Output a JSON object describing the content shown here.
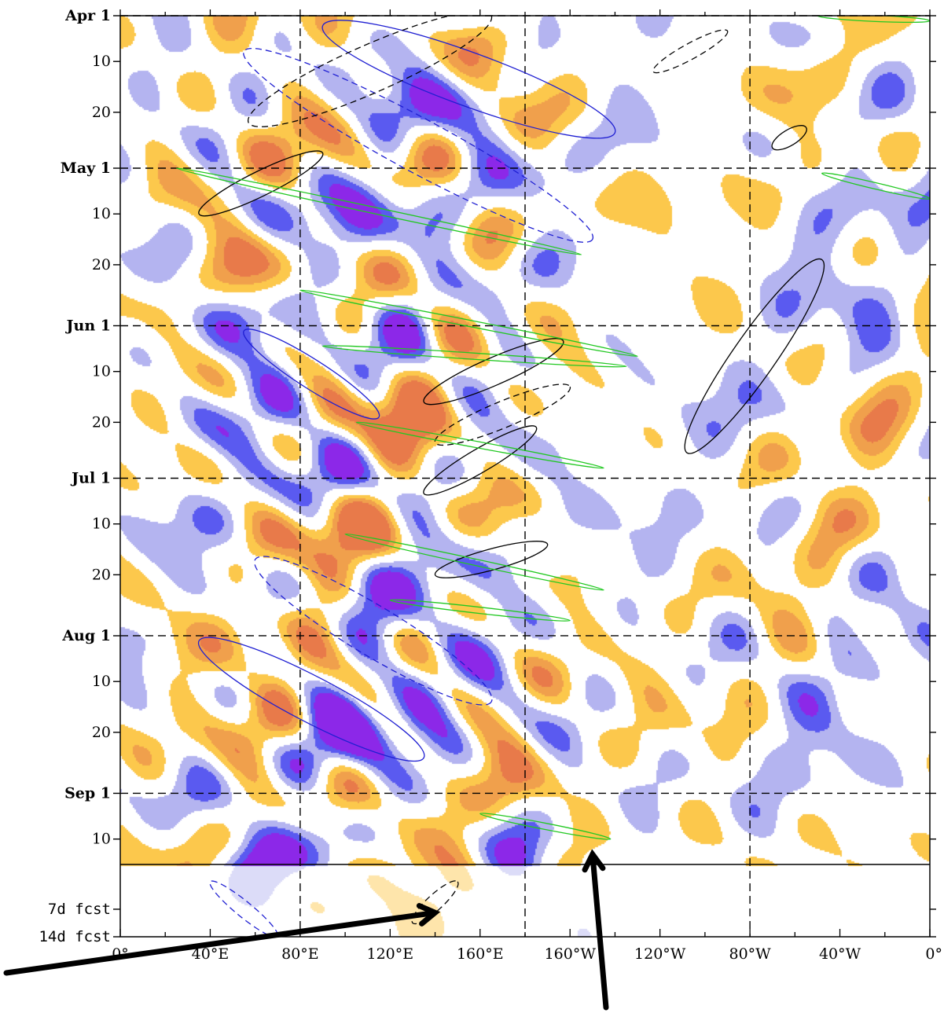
{
  "chart_data": {
    "type": "heatmap",
    "title": "",
    "xlabel": "",
    "ylabel": "",
    "x_axis": {
      "unit": "degrees longitude",
      "range": [
        0,
        360
      ],
      "tick_labels": [
        {
          "lon": 0,
          "label": "0°"
        },
        {
          "lon": 40,
          "label": "40°E"
        },
        {
          "lon": 80,
          "label": "80°E"
        },
        {
          "lon": 120,
          "label": "120°E"
        },
        {
          "lon": 160,
          "label": "160°E"
        },
        {
          "lon": 200,
          "label": "160°W"
        },
        {
          "lon": 240,
          "label": "120°W"
        },
        {
          "lon": 280,
          "label": "80°W"
        },
        {
          "lon": 320,
          "label": "40°W"
        },
        {
          "lon": 360,
          "label": "0°"
        }
      ],
      "dashed_gridlines_lon": [
        80,
        180,
        280
      ]
    },
    "y_axis": {
      "unit": "day of season starting Apr 1 (time increases downward)",
      "range_days": [
        0,
        188
      ],
      "tick_labels": [
        {
          "day": 0,
          "label": "Apr 1",
          "bold": true
        },
        {
          "day": 9,
          "label": "10"
        },
        {
          "day": 19,
          "label": "20"
        },
        {
          "day": 30,
          "label": "May 1",
          "bold": true
        },
        {
          "day": 39,
          "label": "10"
        },
        {
          "day": 49,
          "label": "20"
        },
        {
          "day": 61,
          "label": "Jun 1",
          "bold": true
        },
        {
          "day": 70,
          "label": "10"
        },
        {
          "day": 80,
          "label": "20"
        },
        {
          "day": 91,
          "label": "Jul 1",
          "bold": true
        },
        {
          "day": 100,
          "label": "10"
        },
        {
          "day": 110,
          "label": "20"
        },
        {
          "day": 122,
          "label": "Aug 1",
          "bold": true
        },
        {
          "day": 131,
          "label": "10"
        },
        {
          "day": 141,
          "label": "20"
        },
        {
          "day": 153,
          "label": "Sep 1",
          "bold": true
        },
        {
          "day": 162,
          "label": "10"
        },
        {
          "day": 180,
          "label": "7d fcst"
        },
        {
          "day": 188,
          "label": "14d fcst"
        }
      ],
      "observation_end_day": 167,
      "forecast_range_days": [
        167,
        188
      ],
      "dashed_gridlines_days": [
        0,
        30,
        61,
        91,
        122,
        153
      ]
    },
    "shading": {
      "legend": "none shown",
      "colors": {
        "strong_negative": "#8c28e8",
        "negative": "#5a5af0",
        "weak_negative": "#b4b4f0",
        "weak_positive": "#fcc84c",
        "positive": "#f0a04c",
        "strong_positive": "#e87a4a"
      }
    },
    "contours": [
      {
        "color": "#1f1fd2",
        "style": "solid",
        "lon_start": 90,
        "day_start": 2,
        "lon_end": 220,
        "day_end": 23
      },
      {
        "color": "#1f1fd2",
        "style": "dashed",
        "lon_start": 55,
        "day_start": 7,
        "lon_end": 210,
        "day_end": 44
      },
      {
        "color": "#1f1fd2",
        "style": "solid",
        "lon_start": 55,
        "day_start": 62,
        "lon_end": 115,
        "day_end": 79
      },
      {
        "color": "#1f1fd2",
        "style": "dashed",
        "lon_start": 60,
        "day_start": 107,
        "lon_end": 165,
        "day_end": 135
      },
      {
        "color": "#1f1fd2",
        "style": "solid",
        "lon_start": 35,
        "day_start": 123,
        "lon_end": 135,
        "day_end": 146
      },
      {
        "color": "#1f1fd2",
        "style": "dashed",
        "lon_start": 40,
        "day_start": 172,
        "lon_end": 70,
        "day_end": 188
      },
      {
        "color": "#000000",
        "style": "dashed",
        "lon_start": 57,
        "day_start": 21,
        "lon_end": 165,
        "day_end": 0
      },
      {
        "color": "#000000",
        "style": "solid",
        "lon_start": 35,
        "day_start": 39,
        "lon_end": 90,
        "day_end": 27
      },
      {
        "color": "#000000",
        "style": "solid",
        "lon_start": 135,
        "day_start": 76,
        "lon_end": 197,
        "day_end": 64
      },
      {
        "color": "#000000",
        "style": "dashed",
        "lon_start": 140,
        "day_start": 84,
        "lon_end": 200,
        "day_end": 73
      },
      {
        "color": "#000000",
        "style": "solid",
        "lon_start": 135,
        "day_start": 94,
        "lon_end": 185,
        "day_end": 81
      },
      {
        "color": "#000000",
        "style": "solid",
        "lon_start": 140,
        "day_start": 110,
        "lon_end": 190,
        "day_end": 104
      },
      {
        "color": "#000000",
        "style": "solid",
        "lon_start": 252,
        "day_start": 86,
        "lon_end": 312,
        "day_end": 48
      },
      {
        "color": "#000000",
        "style": "dashed",
        "lon_start": 237,
        "day_start": 11,
        "lon_end": 270,
        "day_end": 3
      },
      {
        "color": "#000000",
        "style": "solid",
        "lon_start": 290,
        "day_start": 26,
        "lon_end": 305,
        "day_end": 22
      },
      {
        "color": "#000000",
        "style": "dashed",
        "lon_start": 130,
        "day_start": 184,
        "lon_end": 150,
        "day_end": 172
      },
      {
        "color": "#22c822",
        "style": "solid",
        "lon_start": 25,
        "day_start": 30,
        "lon_end": 205,
        "day_end": 47
      },
      {
        "color": "#22c822",
        "style": "solid",
        "lon_start": 80,
        "day_start": 54,
        "lon_end": 230,
        "day_end": 67
      },
      {
        "color": "#22c822",
        "style": "solid",
        "lon_start": 90,
        "day_start": 65,
        "lon_end": 225,
        "day_end": 69
      },
      {
        "color": "#22c822",
        "style": "solid",
        "lon_start": 105,
        "day_start": 80,
        "lon_end": 215,
        "day_end": 89
      },
      {
        "color": "#22c822",
        "style": "solid",
        "lon_start": 100,
        "day_start": 102,
        "lon_end": 215,
        "day_end": 113
      },
      {
        "color": "#22c822",
        "style": "solid",
        "lon_start": 160,
        "day_start": 157,
        "lon_end": 218,
        "day_end": 162
      },
      {
        "color": "#22c822",
        "style": "solid",
        "lon_start": 120,
        "day_start": 115,
        "lon_end": 200,
        "day_end": 119
      },
      {
        "color": "#22c822",
        "style": "solid",
        "lon_start": 310,
        "day_start": 0,
        "lon_end": 360,
        "day_end": 1
      },
      {
        "color": "#22c822",
        "style": "solid",
        "lon_start": 312,
        "day_start": 31,
        "lon_end": 360,
        "day_end": 36
      }
    ],
    "annotations": [
      {
        "type": "arrow",
        "color": "#000000",
        "points_to_lon": 140,
        "points_to_day": 181
      },
      {
        "type": "arrow",
        "color": "#000000",
        "points_to_lon": 210,
        "points_to_day": 165
      }
    ]
  }
}
